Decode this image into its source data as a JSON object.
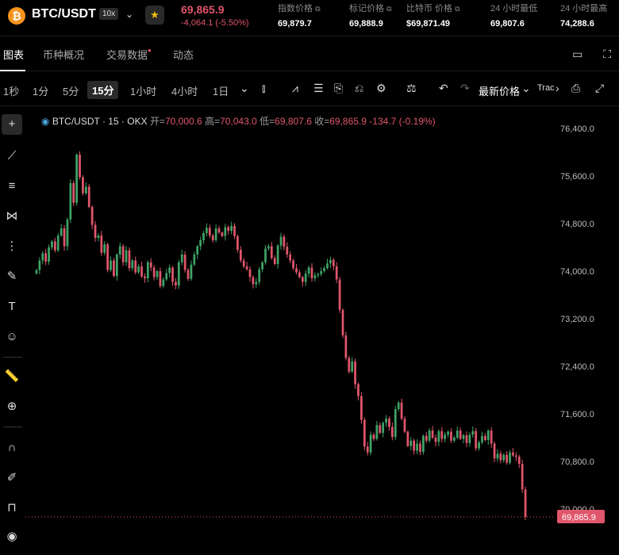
{
  "header": {
    "logo_symbol": "₿",
    "pair": "BTC/USDT",
    "leverage": "10x",
    "last_price": "69,865.9",
    "change": "-4,064.1 (-5.50%)",
    "stats": [
      {
        "label": "指数价格",
        "value": "69,879.7",
        "ext": "⧉"
      },
      {
        "label": "标记价格",
        "value": "69,888.9",
        "ext": "⧉"
      },
      {
        "label": "比特币 价格",
        "value": "$69,871.49",
        "ext": "⧉"
      },
      {
        "label": "24 小时最低",
        "value": "69,807.6",
        "ext": ""
      },
      {
        "label": "24 小时最高",
        "value": "74,288.6",
        "ext": ""
      }
    ]
  },
  "tabs": [
    {
      "label": "图表"
    },
    {
      "label": "币种概况"
    },
    {
      "label": "交易数据"
    },
    {
      "label": "动态"
    }
  ],
  "toolbar": {
    "timeframes": [
      "1秒",
      "1分",
      "5分",
      "15分",
      "1小时",
      "4小时",
      "1日"
    ],
    "active_timeframe": "15分",
    "price_type": "最新价格",
    "trade_label": "Trac"
  },
  "legend": {
    "symbol": "BTC/USDT · 15 · OKX",
    "open_label": "开=",
    "open": "70,000.6",
    "high_label": "高=",
    "high": "70,043.0",
    "low_label": "低=",
    "low": "69,807.6",
    "close_label": "收=",
    "close": "69,865.9",
    "change": "-134.7 (-0.19%)"
  },
  "colors": {
    "up": "#3fa366",
    "down": "#e0566b",
    "accent": "#f7931a"
  },
  "chart_data": {
    "type": "candlestick",
    "y_ticks": [
      "76,400.0",
      "75,600.0",
      "74,800.0",
      "74,000.0",
      "73,200.0",
      "72,400.0",
      "71,600.0",
      "70,800.0",
      "70,000.0"
    ],
    "ylim": [
      69700,
      76600
    ],
    "current_price": 69865.9,
    "current_price_label": "69,865.9",
    "closes": [
      74020,
      74180,
      74300,
      74160,
      74400,
      74500,
      74350,
      74600,
      74720,
      74420,
      74870,
      75480,
      75150,
      75960,
      75580,
      75310,
      75420,
      75080,
      74780,
      74560,
      74600,
      74310,
      74450,
      74020,
      74180,
      73920,
      74280,
      74420,
      74150,
      74350,
      74050,
      74180,
      73980,
      74080,
      73910,
      73880,
      74150,
      74060,
      73900,
      74000,
      73750,
      73860,
      73970,
      74060,
      73820,
      73760,
      74150,
      74280,
      74020,
      73870,
      74110,
      74280,
      74420,
      74520,
      74640,
      74730,
      74600,
      74520,
      74720,
      74650,
      74590,
      74740,
      74680,
      74760,
      74590,
      74360,
      74180,
      74080,
      74030,
      73900,
      73780,
      73820,
      74030,
      74150,
      74380,
      74420,
      74220,
      74120,
      74430,
      74580,
      74410,
      74280,
      74180,
      74050,
      73980,
      73900,
      73820,
      73960,
      74060,
      73880,
      73930,
      73950,
      74000,
      74050,
      74130,
      74190,
      74080,
      73860,
      73350,
      72920,
      72540,
      72310,
      72480,
      72100,
      71900,
      71500,
      71050,
      70950,
      71250,
      71180,
      71410,
      71280,
      71450,
      71520,
      71380,
      71210,
      71680,
      71790,
      71520,
      71300,
      71060,
      71150,
      70980,
      71100,
      70960,
      71230,
      71150,
      71320,
      71200,
      71130,
      71310,
      71180,
      71250,
      71300,
      71150,
      71200,
      71320,
      71180,
      71240,
      71110,
      71250,
      71310,
      71020,
      71120,
      71230,
      71160,
      71320,
      71100,
      70850,
      70930,
      70820,
      70910,
      70780,
      70950,
      70900,
      70880,
      70760,
      70330,
      69865.9
    ]
  }
}
